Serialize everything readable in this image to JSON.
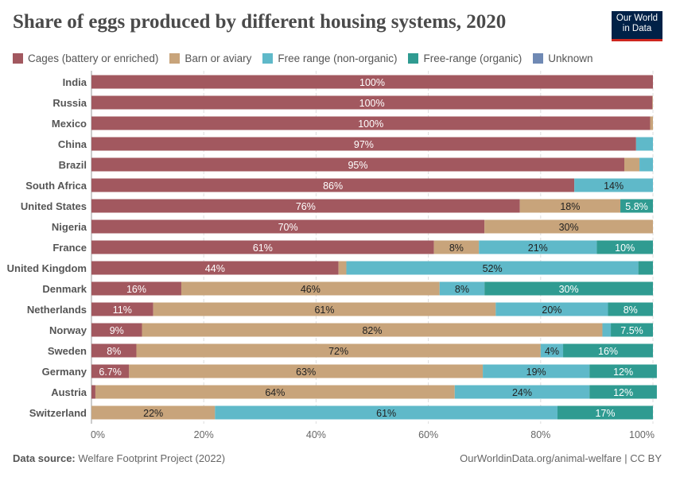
{
  "title": "Share of eggs produced by different housing systems, 2020",
  "logo": {
    "line1": "Our World",
    "line2": "in Data"
  },
  "footer": {
    "source_label": "Data source:",
    "source": "Welfare Footprint Project (2022)",
    "url": "OurWorldinData.org/animal-welfare | CC BY"
  },
  "chart_data": {
    "type": "bar",
    "orientation": "horizontal",
    "stacked": true,
    "title": "Share of eggs produced by different housing systems, 2020",
    "xlim": [
      0,
      100
    ],
    "x_ticks": [
      "0%",
      "20%",
      "40%",
      "60%",
      "80%",
      "100%"
    ],
    "grid": true,
    "legend_position": "top",
    "categories": [
      "India",
      "Russia",
      "Mexico",
      "China",
      "Brazil",
      "South Africa",
      "United States",
      "Nigeria",
      "France",
      "United Kingdom",
      "Denmark",
      "Netherlands",
      "Norway",
      "Sweden",
      "Germany",
      "Austria",
      "Switzerland"
    ],
    "series": [
      {
        "name": "Cages (battery or enriched)",
        "color": "#a2585f",
        "label_color": "#ffffff",
        "values": [
          100,
          99.9,
          99.5,
          97,
          94.9,
          86,
          76.3,
          70,
          61,
          44,
          16,
          11,
          9,
          8,
          6.7,
          0.7,
          0
        ]
      },
      {
        "name": "Barn or aviary",
        "color": "#c8a47b",
        "label_color": "#222222",
        "values": [
          0,
          0.1,
          0.5,
          0,
          2.7,
          0,
          17.9,
          30,
          8,
          1.4,
          46,
          61,
          82,
          72,
          63,
          64,
          22
        ]
      },
      {
        "name": "Free range (non-organic)",
        "color": "#5fb9c9",
        "label_color": "#222222",
        "values": [
          0,
          0,
          0,
          3,
          2.4,
          14,
          0,
          0,
          21,
          52,
          8,
          20,
          1.5,
          4,
          19,
          24,
          61
        ]
      },
      {
        "name": "Free-range (organic)",
        "color": "#2f9b91",
        "label_color": "#ffffff",
        "values": [
          0,
          0,
          0,
          0,
          0,
          0,
          5.8,
          0,
          10,
          2.6,
          30,
          8,
          7.5,
          16,
          12,
          12,
          17
        ]
      },
      {
        "name": "Unknown",
        "color": "#6f89b4",
        "label_color": "#ffffff",
        "values": [
          0,
          0,
          0,
          0,
          0,
          0,
          0,
          0,
          0,
          0,
          0,
          0,
          0,
          0,
          0,
          0,
          0
        ]
      }
    ]
  }
}
